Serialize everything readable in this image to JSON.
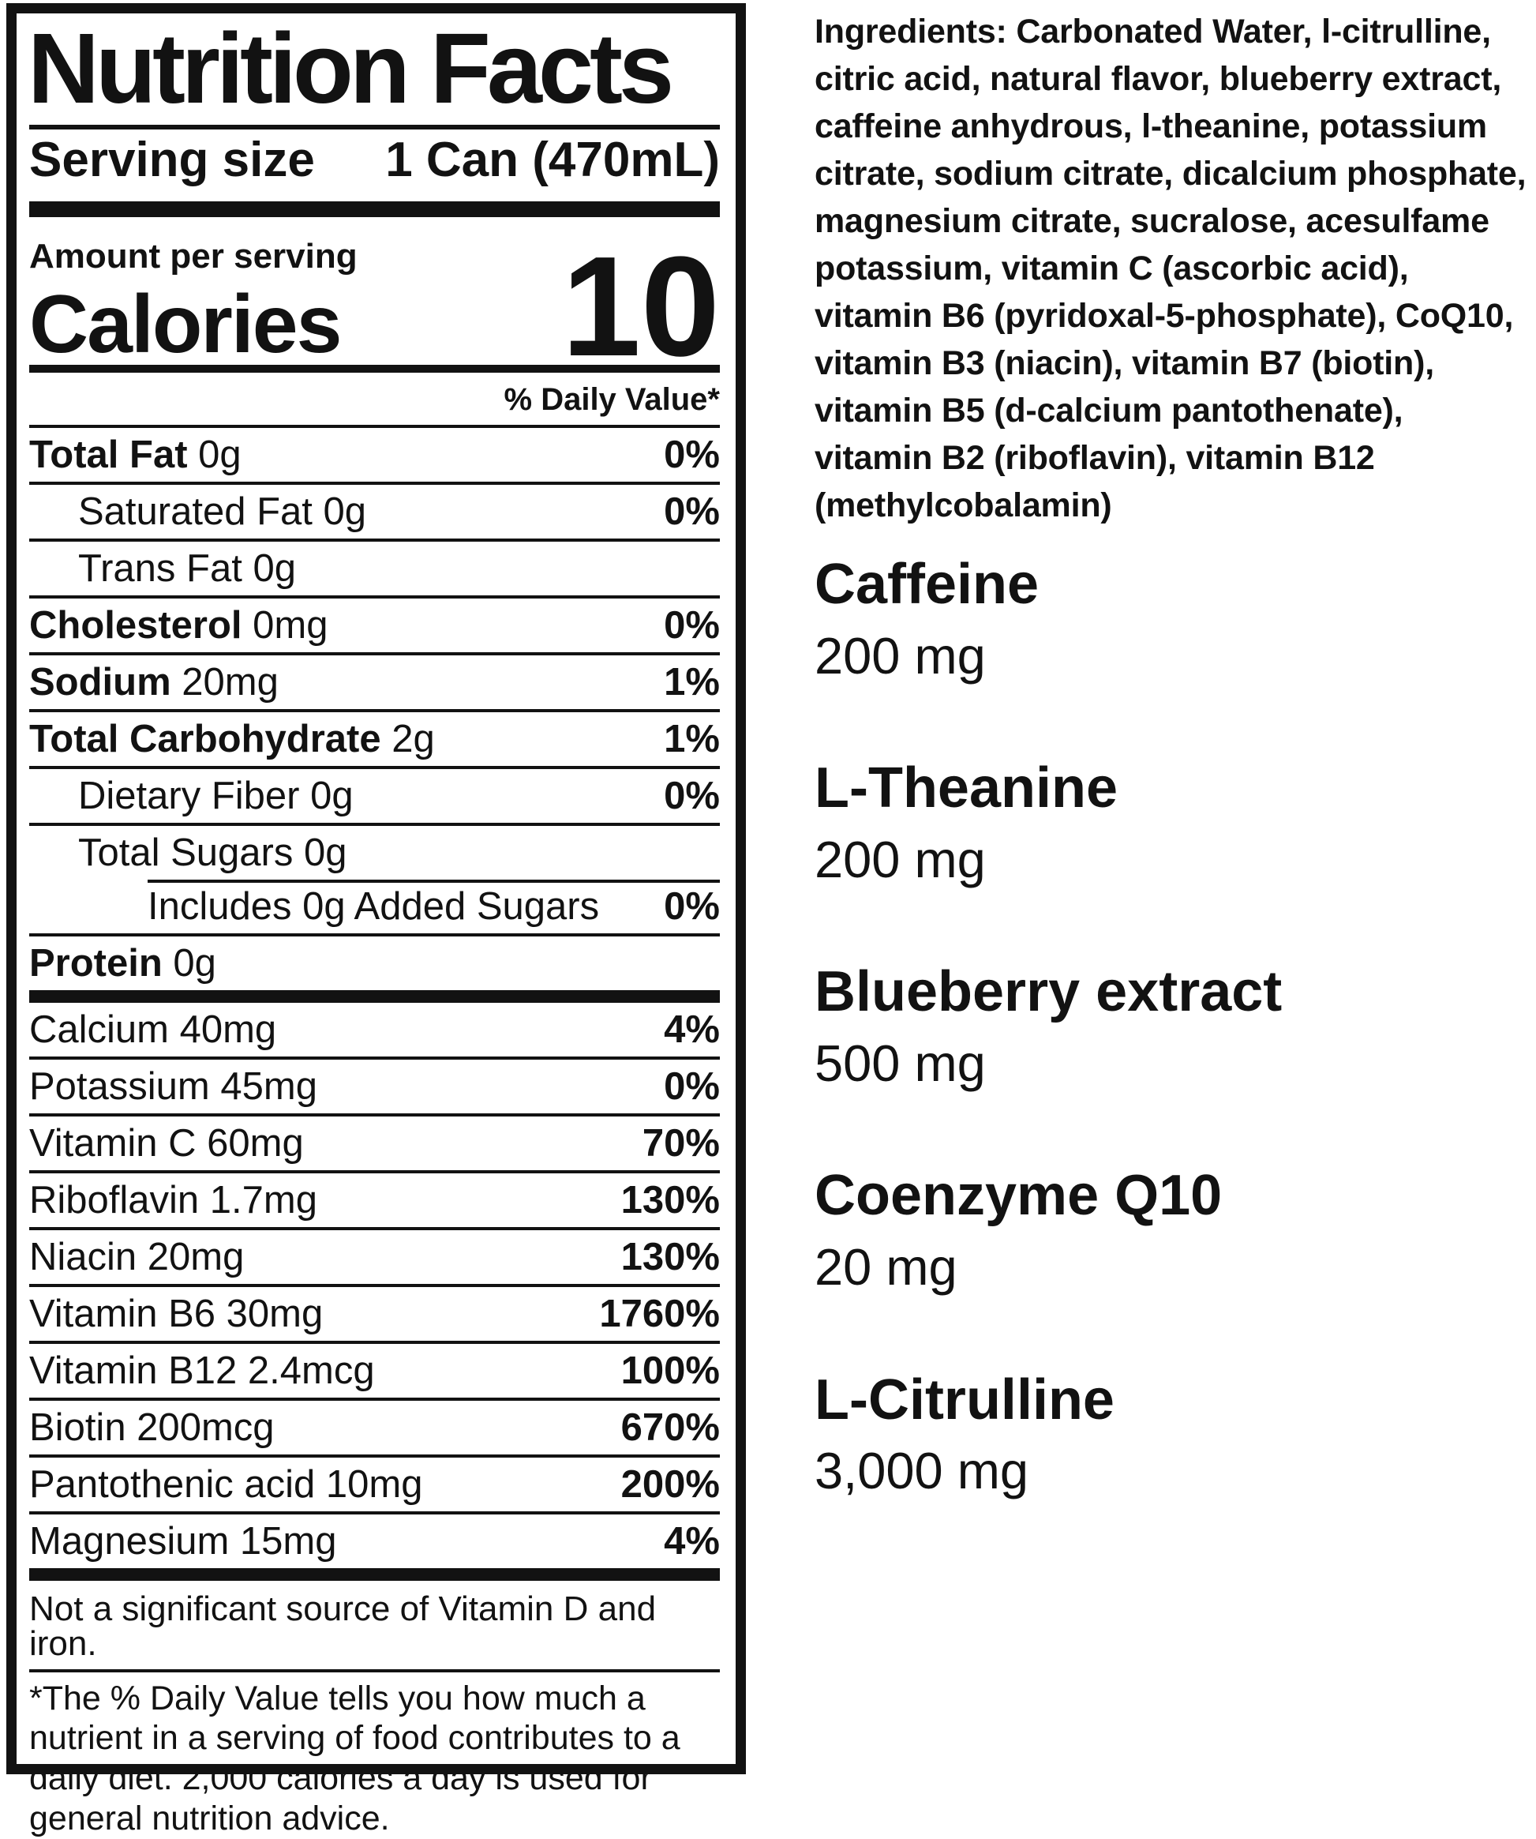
{
  "label": {
    "title": "Nutrition Facts",
    "serving_size_label": "Serving size",
    "serving_size_value": "1 Can (470mL)",
    "amount_per_serving": "Amount per serving",
    "calories_label": "Calories",
    "calories_value": "10",
    "daily_value_header": "% Daily Value*",
    "rows": [
      {
        "bold": "Total Fat",
        "rest": " 0g",
        "dv": "0%"
      },
      {
        "bold": "",
        "rest": "Saturated Fat 0g",
        "dv": "0%"
      },
      {
        "bold": "",
        "rest": "Trans Fat 0g",
        "dv": ""
      },
      {
        "bold": "Cholesterol",
        "rest": " 0mg",
        "dv": "0%"
      },
      {
        "bold": "Sodium",
        "rest": " 20mg",
        "dv": "1%"
      },
      {
        "bold": "Total Carbohydrate",
        "rest": " 2g",
        "dv": "1%"
      },
      {
        "bold": "",
        "rest": "Dietary Fiber 0g",
        "dv": "0%"
      },
      {
        "bold": "",
        "rest": "Total Sugars 0g",
        "dv": ""
      },
      {
        "bold": "",
        "rest": "Includes 0g Added Sugars",
        "dv": "0%"
      },
      {
        "bold": "Protein",
        "rest": " 0g",
        "dv": ""
      },
      {
        "bold": "",
        "rest": "Calcium 40mg",
        "dv": "4%"
      },
      {
        "bold": "",
        "rest": "Potassium 45mg",
        "dv": "0%"
      },
      {
        "bold": "",
        "rest": "Vitamin C 60mg",
        "dv": "70%"
      },
      {
        "bold": "",
        "rest": "Riboflavin 1.7mg",
        "dv": "130%"
      },
      {
        "bold": "",
        "rest": "Niacin 20mg",
        "dv": "130%"
      },
      {
        "bold": "",
        "rest": "Vitamin B6 30mg",
        "dv": "1760%"
      },
      {
        "bold": "",
        "rest": "Vitamin B12 2.4mcg",
        "dv": "100%"
      },
      {
        "bold": "",
        "rest": "Biotin 200mcg",
        "dv": "670%"
      },
      {
        "bold": "",
        "rest": "Pantothenic acid 10mg",
        "dv": "200%"
      },
      {
        "bold": "",
        "rest": "Magnesium 15mg",
        "dv": "4%"
      }
    ],
    "not_significant": "Not a significant source of Vitamin D and iron.",
    "footnote": "*The % Daily Value tells you how much a nutrient in a serving of food contributes to a daily diet. 2,000 calories a day is used for general nutrition advice."
  },
  "right_column": {
    "ingredients": "Ingredients: Carbonated Water, l-citrulline, citric acid, natural flavor, blueberry extract, caffeine anhydrous, l-theanine, potassium citrate, sodium citrate, dicalcium phosphate, magnesium citrate, sucralose, acesulfame potassium, vitamin C (ascorbic acid), vitamin B6 (pyridoxal-5-phosphate), CoQ10, vitamin B3 (niacin), vitamin B7 (biotin), vitamin B5 (d-calcium pantothenate), vitamin B2 (riboflavin), vitamin B12 (methylcobalamin)",
    "supplements": [
      {
        "name": "Caffeine",
        "amount": "200 mg"
      },
      {
        "name": "L-Theanine",
        "amount": "200 mg"
      },
      {
        "name": "Blueberry extract",
        "amount": "500 mg"
      },
      {
        "name": "Coenzyme Q10",
        "amount": "20 mg"
      },
      {
        "name": "L-Citrulline",
        "amount": "3,000 mg"
      }
    ],
    "text_color": "#121212"
  }
}
